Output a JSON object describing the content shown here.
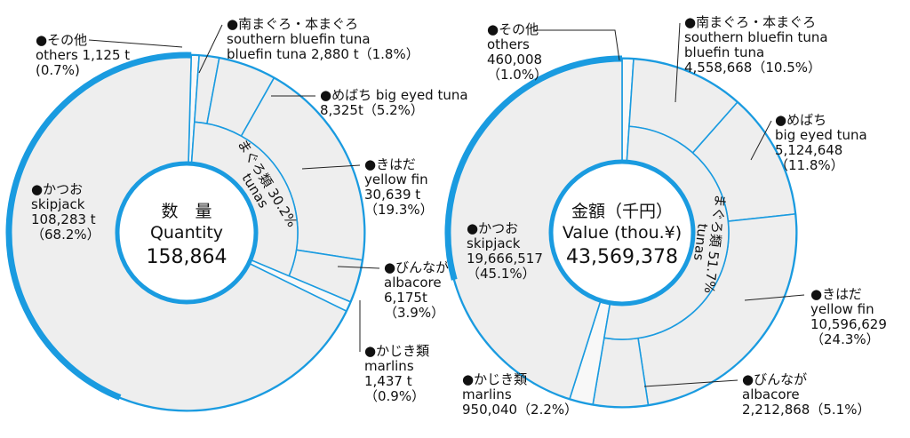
{
  "colors": {
    "accent": "#1a9be0",
    "fill": "#eeeeee",
    "line": "#1a9be0",
    "leader": "#222222"
  },
  "chart_data": [
    {
      "type": "pie",
      "center": {
        "title": "数　量",
        "subtitle": "Quantity",
        "total": "158,864"
      },
      "inner_ring_label": "まぐろ類 30.2%",
      "inner_ring_label_en": "tunas",
      "slices": [
        {
          "name": "others",
          "value": 1125,
          "percent": 0.7,
          "lines": [
            "●その他",
            "others 1,125 t",
            "(0.7%)"
          ]
        },
        {
          "name": "southern bluefin tuna / bluefin tuna",
          "value": 2880,
          "percent": 1.8,
          "group": "tunas",
          "lines": [
            "●南まぐろ・本まぐろ",
            "southern bluefin tuna",
            "bluefin tuna 2,880 t（1.8%）"
          ]
        },
        {
          "name": "big eyed tuna",
          "value": 8325,
          "percent": 5.2,
          "group": "tunas",
          "lines": [
            "●めばち big eyed tuna",
            "8,325t（5.2%）"
          ]
        },
        {
          "name": "yellow fin",
          "value": 30639,
          "percent": 19.3,
          "group": "tunas",
          "lines": [
            "●きはだ",
            "yellow fin",
            "30,639 t",
            "（19.3%）"
          ]
        },
        {
          "name": "albacore",
          "value": 6175,
          "percent": 3.9,
          "group": "tunas",
          "lines": [
            "●びんなが",
            "albacore",
            "6,175t",
            "（3.9%）"
          ]
        },
        {
          "name": "marlins",
          "value": 1437,
          "percent": 0.9,
          "lines": [
            "●かじき類",
            "marlins",
            "1,437 t",
            "（0.9%）"
          ]
        },
        {
          "name": "skipjack",
          "value": 108283,
          "percent": 68.2,
          "lines": [
            "●かつお",
            "skipjack",
            "108,283 t",
            "（68.2%）"
          ]
        }
      ]
    },
    {
      "type": "pie",
      "center": {
        "title": "金額",
        "title_unit": "（千円）",
        "subtitle": "Value",
        "subtitle_unit": "(thou.¥)",
        "total": "43,569,378"
      },
      "inner_ring_label": "まぐろ類 51.7%",
      "inner_ring_label_en": "tunas",
      "slices": [
        {
          "name": "others",
          "value": 460008,
          "percent": 1.0,
          "lines": [
            "●その他",
            "others",
            "460,008",
            "（1.0%）"
          ]
        },
        {
          "name": "southern bluefin tuna / bluefin tuna",
          "value": 4558668,
          "percent": 10.5,
          "group": "tunas",
          "lines": [
            "●南まぐろ・本まぐろ",
            "southern bluefin tuna",
            "bluefin tuna",
            "4,558,668（10.5%）"
          ]
        },
        {
          "name": "big eyed tuna",
          "value": 5124648,
          "percent": 11.8,
          "group": "tunas",
          "lines": [
            "●めばち",
            "big eyed tuna",
            "5,124,648",
            "（11.8%）"
          ]
        },
        {
          "name": "yellow fin",
          "value": 10596629,
          "percent": 24.3,
          "group": "tunas",
          "lines": [
            "●きはだ",
            "yellow fin",
            "10,596,629",
            "（24.3%）"
          ]
        },
        {
          "name": "albacore",
          "value": 2212868,
          "percent": 5.1,
          "group": "tunas",
          "lines": [
            "●びんなが",
            "albacore",
            "2,212,868（5.1%）"
          ]
        },
        {
          "name": "marlins",
          "value": 950040,
          "percent": 2.2,
          "lines": [
            "●かじき類",
            "marlins",
            "950,040（2.2%）"
          ]
        },
        {
          "name": "skipjack",
          "value": 19666517,
          "percent": 45.1,
          "lines": [
            "●かつお",
            "skipjack",
            "19,666,517",
            "（45.1%）"
          ]
        }
      ]
    }
  ]
}
